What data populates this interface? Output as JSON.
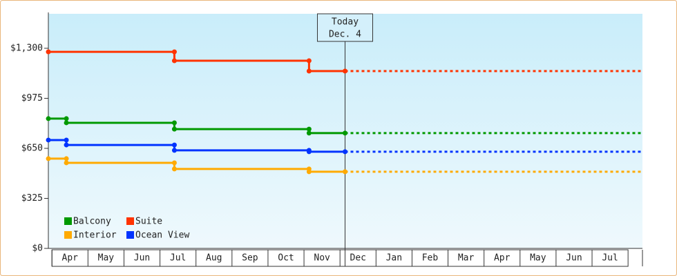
{
  "chart_data": {
    "type": "step-line",
    "categories": [
      "Apr",
      "May",
      "Jun",
      "Jul",
      "Aug",
      "Sep",
      "Oct",
      "Nov",
      "Dec",
      "Jan",
      "Feb",
      "Mar",
      "Apr",
      "May",
      "Jun",
      "Jul"
    ],
    "xlim": [
      -0.1,
      16.4
    ],
    "ylim": [
      0,
      1524
    ],
    "yticks": [
      {
        "value": 0,
        "label": "$0"
      },
      {
        "value": 325,
        "label": "$325"
      },
      {
        "value": 650,
        "label": "$650"
      },
      {
        "value": 975,
        "label": "$975"
      },
      {
        "value": 1300,
        "label": "$1,300"
      }
    ],
    "today": {
      "x": 8.14,
      "label": "Today",
      "date": "Dec. 4"
    },
    "series": [
      {
        "name": "Balcony",
        "color": "#009900",
        "x": [
          -0.1,
          0.4,
          3.4,
          7.14,
          8.14
        ],
        "values": [
          843,
          816,
          775,
          749,
          749
        ]
      },
      {
        "name": "Suite",
        "color": "#ff3300",
        "x": [
          -0.1,
          3.4,
          7.14,
          8.14
        ],
        "values": [
          1277,
          1219,
          1152,
          1152
        ]
      },
      {
        "name": "Interior",
        "color": "#ffaa00",
        "x": [
          -0.1,
          0.4,
          3.4,
          7.14,
          8.14
        ],
        "values": [
          583,
          556,
          516,
          498,
          498
        ]
      },
      {
        "name": "Ocean View",
        "color": "#0033ff",
        "x": [
          -0.1,
          0.4,
          3.4,
          7.14,
          8.14
        ],
        "values": [
          704,
          672,
          637,
          628,
          628
        ]
      }
    ],
    "legend": "bottom-left"
  }
}
